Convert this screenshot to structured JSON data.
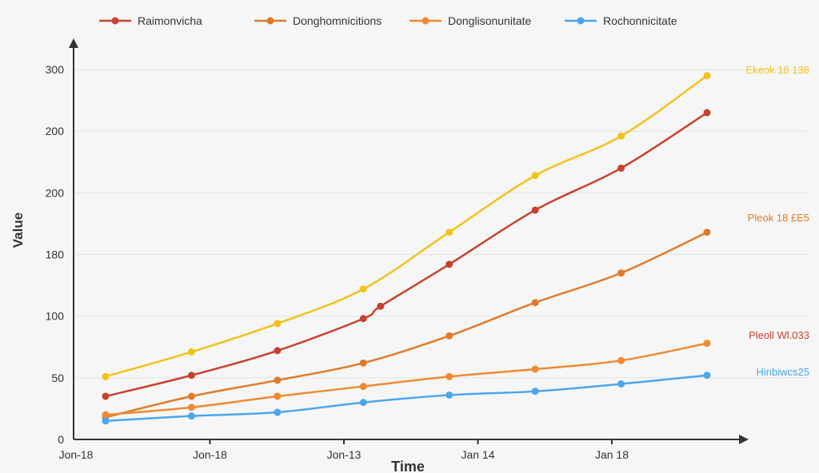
{
  "chart_data": {
    "type": "line",
    "title": "",
    "xlabel": "Time",
    "ylabel": "Value",
    "x_ticks": [
      "Jon-18",
      "Jon-18",
      "Jon-13",
      "Jan 14",
      "Jan 18"
    ],
    "y_ticks": [
      "0",
      "50",
      "100",
      "180",
      "200",
      "200",
      "300"
    ],
    "ylim": [
      0,
      300
    ],
    "grid": true,
    "legend_position": "top",
    "series": [
      {
        "name": "Raimonvicha",
        "color": "#c8412e",
        "x": [
          0,
          1,
          2,
          3,
          3.2,
          4,
          5,
          6,
          7
        ],
        "y": [
          35,
          52,
          72,
          98,
          108,
          142,
          186,
          220,
          265
        ]
      },
      {
        "name": "Donghomnicitions",
        "color": "#e07b2a",
        "x": [
          0,
          1,
          2,
          3,
          4,
          5,
          6,
          7
        ],
        "y": [
          18,
          35,
          48,
          62,
          84,
          111,
          135,
          168
        ]
      },
      {
        "name": "Donglisonunitate",
        "color": "#ef8a33",
        "x": [
          0,
          1,
          2,
          3,
          4,
          5,
          6,
          7
        ],
        "y": [
          20,
          26,
          35,
          43,
          51,
          57,
          64,
          78
        ]
      },
      {
        "name": "Rochonnicitate",
        "color": "#4aa6ee",
        "x": [
          0,
          1,
          2,
          3,
          4,
          5,
          6,
          7
        ],
        "y": [
          15,
          19,
          22,
          30,
          36,
          39,
          45,
          52
        ]
      },
      {
        "name": "",
        "color": "#f2c21b",
        "x": [
          0,
          1,
          2,
          3,
          4,
          5,
          6,
          7
        ],
        "y": [
          51,
          71,
          94,
          122,
          168,
          214,
          246,
          295
        ]
      }
    ],
    "annotations": [
      {
        "text": "Ekeok 18 138",
        "color": "#f2c21b",
        "x": 7,
        "y": 300
      },
      {
        "text": "Pleok 18 £E5",
        "color": "#e07b2a",
        "x": 7,
        "y": 180
      },
      {
        "text": "Pleoll Wl.033",
        "color": "#c8412e",
        "x": 7,
        "y": 85
      },
      {
        "text": "Hinbiwcs25",
        "color": "#4aa6ee",
        "x": 7,
        "y": 55
      }
    ]
  }
}
